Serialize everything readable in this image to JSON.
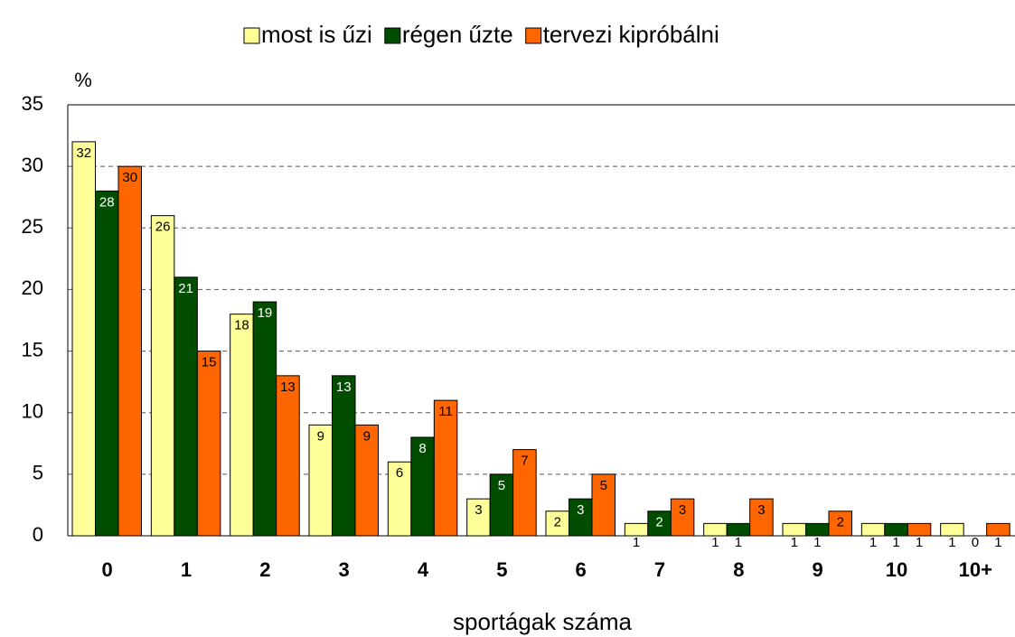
{
  "chart_data": {
    "type": "bar",
    "categories": [
      "0",
      "1",
      "2",
      "3",
      "4",
      "5",
      "6",
      "7",
      "8",
      "9",
      "10",
      "10+"
    ],
    "series": [
      {
        "name": "most is űzi",
        "color": "#ffff99",
        "values": [
          32,
          26,
          18,
          9,
          6,
          3,
          2,
          1,
          1,
          1,
          1,
          1
        ]
      },
      {
        "name": "régen űzte",
        "color": "#004d00",
        "values": [
          28,
          21,
          19,
          13,
          8,
          5,
          3,
          2,
          1,
          1,
          1,
          0
        ]
      },
      {
        "name": "tervezi kipróbálni",
        "color": "#ff6600",
        "values": [
          30,
          15,
          13,
          9,
          11,
          7,
          5,
          3,
          3,
          2,
          1,
          1
        ]
      }
    ],
    "y_label": "%",
    "x_label": "sportágak száma",
    "ylim": [
      0,
      35
    ],
    "yticks": [
      0,
      5,
      10,
      15,
      20,
      25,
      30,
      35
    ],
    "grid": true,
    "legend": "top"
  }
}
